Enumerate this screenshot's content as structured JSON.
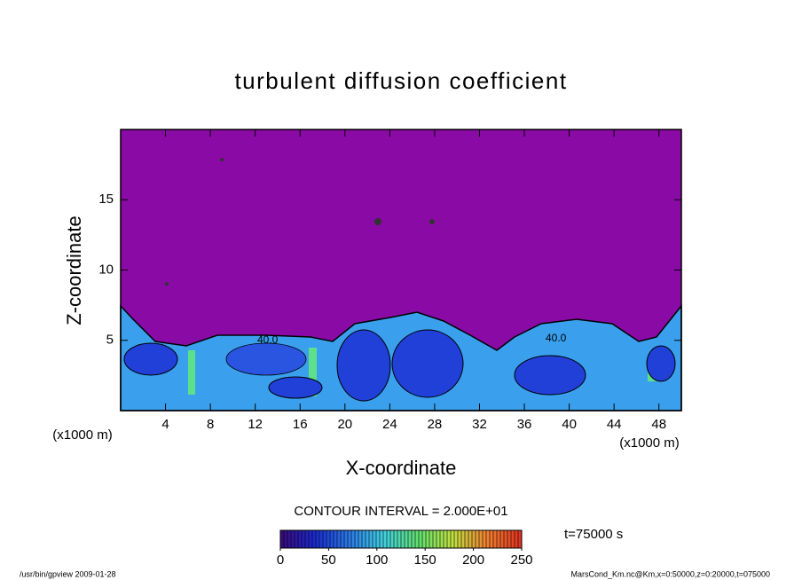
{
  "chart_data": {
    "type": "contour",
    "title": "turbulent diffusion coefficient",
    "xlabel": "X-coordinate",
    "ylabel": "Z-coordinate",
    "x_unit": "(x1000 m)",
    "y_unit": "(x1000 m)",
    "xlim": [
      0,
      50
    ],
    "ylim": [
      0,
      20
    ],
    "xticks": [
      4,
      8,
      12,
      16,
      20,
      24,
      28,
      32,
      36,
      40,
      44,
      48
    ],
    "yticks": [
      5,
      10,
      15
    ],
    "contour_interval": "CONTOUR INTERVAL = 2.000E+01",
    "contour_labels": [
      "40.0",
      "40.0"
    ],
    "annotation": "t=75000 s",
    "footer_left": "/usr/bin/gpview  2009-01-28",
    "footer_right": "MarsCond_Km.nc@Km,x=0:50000,z=0:20000,t=075000",
    "colorbar": {
      "lim": [
        0,
        250
      ],
      "ticks": [
        0,
        50,
        100,
        150,
        200,
        250
      ],
      "colors": [
        "#3a0a7a",
        "#1a2ad0",
        "#2a7ae8",
        "#40d0e0",
        "#60e070",
        "#c0e040",
        "#f08030",
        "#e03020"
      ]
    }
  }
}
